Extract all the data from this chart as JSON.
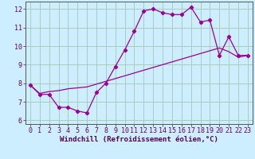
{
  "xlabel": "Windchill (Refroidissement éolien,°C)",
  "bg_color": "#cceeff",
  "line_color": "#990099",
  "grid_color": "#aaddcc",
  "x_line1": [
    0,
    1,
    2,
    3,
    4,
    5,
    6,
    7,
    8,
    9,
    10,
    11,
    12,
    13,
    14,
    15,
    16,
    17,
    18,
    19,
    20,
    21,
    22,
    23
  ],
  "y_line1": [
    7.9,
    7.4,
    7.4,
    6.7,
    6.7,
    6.5,
    6.4,
    7.5,
    8.0,
    8.9,
    9.8,
    10.8,
    11.9,
    12.0,
    11.8,
    11.7,
    11.7,
    12.1,
    11.3,
    11.4,
    9.5,
    10.5,
    9.5,
    9.5
  ],
  "x_line2": [
    0,
    1,
    2,
    3,
    4,
    5,
    6,
    7,
    8,
    9,
    10,
    11,
    12,
    13,
    14,
    15,
    16,
    17,
    18,
    19,
    20,
    21,
    22,
    23
  ],
  "y_line2": [
    7.9,
    7.45,
    7.55,
    7.6,
    7.7,
    7.75,
    7.8,
    7.95,
    8.1,
    8.25,
    8.4,
    8.55,
    8.7,
    8.85,
    9.0,
    9.15,
    9.3,
    9.45,
    9.6,
    9.75,
    9.9,
    9.7,
    9.4,
    9.5
  ],
  "xlim": [
    -0.5,
    23.5
  ],
  "ylim": [
    5.8,
    12.4
  ],
  "xticks": [
    0,
    1,
    2,
    3,
    4,
    5,
    6,
    7,
    8,
    9,
    10,
    11,
    12,
    13,
    14,
    15,
    16,
    17,
    18,
    19,
    20,
    21,
    22,
    23
  ],
  "yticks": [
    6,
    7,
    8,
    9,
    10,
    11,
    12
  ],
  "xlabel_fontsize": 6.5,
  "tick_fontsize": 6.0
}
